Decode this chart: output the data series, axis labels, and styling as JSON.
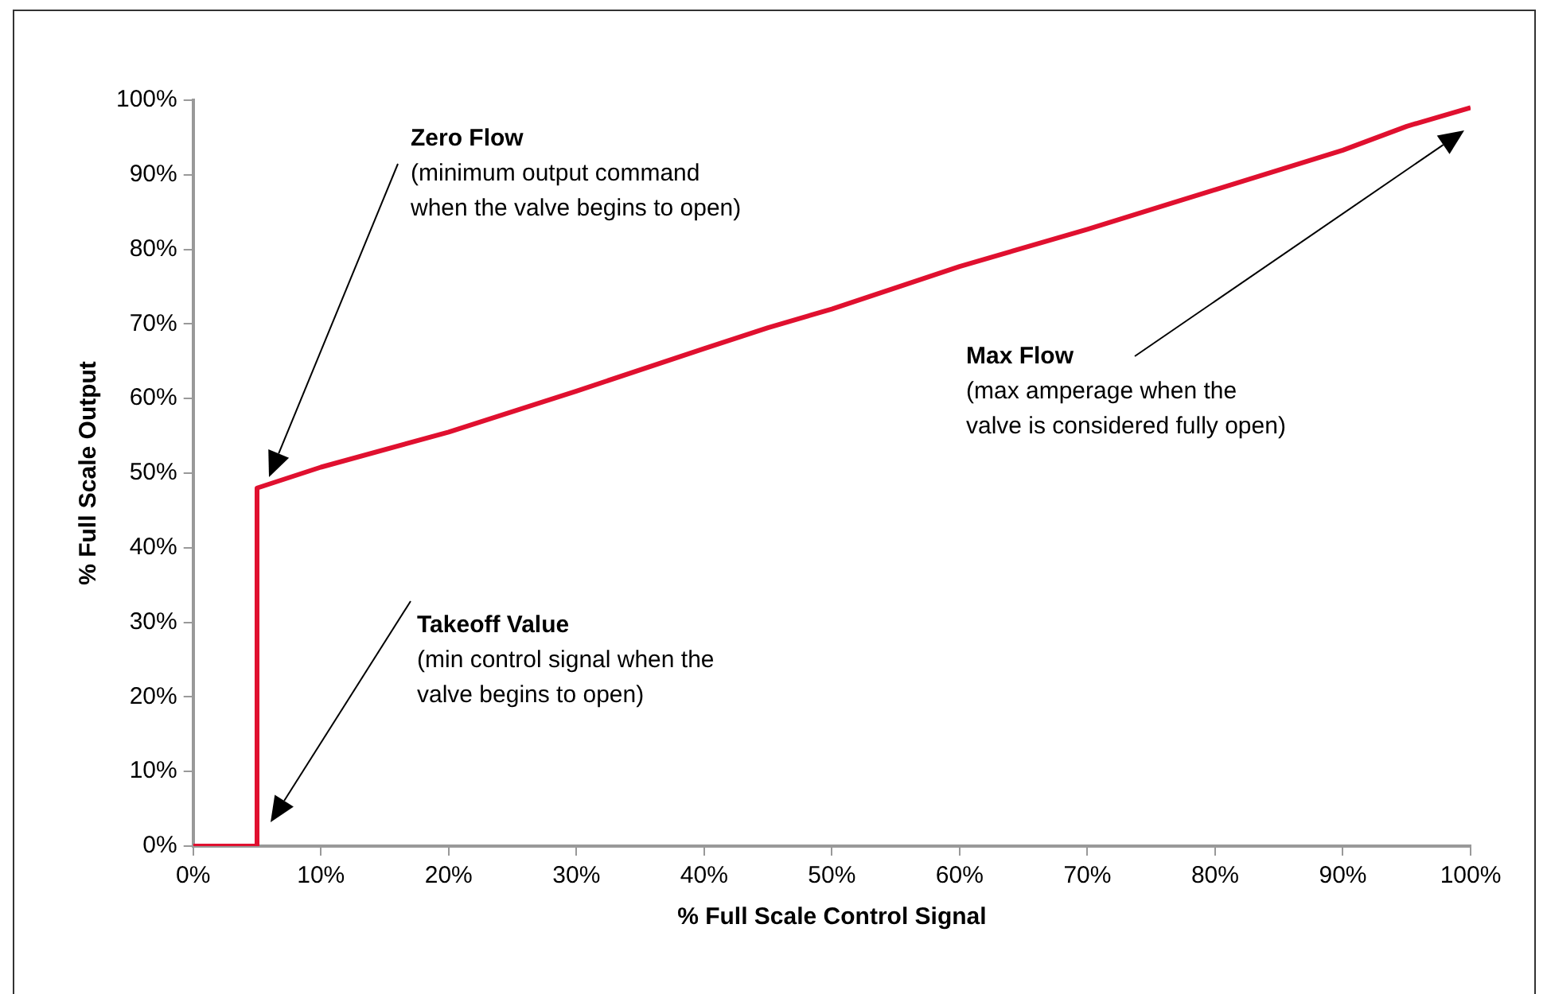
{
  "chart_data": {
    "type": "line",
    "xlabel": "% Full Scale Control Signal",
    "ylabel": "% Full Scale Output",
    "x": [
      0,
      5,
      5,
      10,
      20,
      30,
      40,
      45,
      50,
      60,
      70,
      80,
      90,
      95,
      100
    ],
    "series": [
      {
        "color": "#e0102f",
        "values": [
          0,
          0,
          48,
          50.8,
          55.5,
          61,
          66.7,
          69.5,
          72,
          77.7,
          82.7,
          88,
          93.3,
          96.5,
          99
        ]
      }
    ],
    "xlim": [
      0,
      100
    ],
    "xticks": [
      {
        "value": 0,
        "label": "0%"
      },
      {
        "value": 10,
        "label": "10%"
      },
      {
        "value": 20,
        "label": "20%"
      },
      {
        "value": 30,
        "label": "30%"
      },
      {
        "value": 40,
        "label": "40%"
      },
      {
        "value": 50,
        "label": "50%"
      },
      {
        "value": 60,
        "label": "60%"
      },
      {
        "value": 70,
        "label": "70%"
      },
      {
        "value": 80,
        "label": "80%"
      },
      {
        "value": 90,
        "label": "90%"
      },
      {
        "value": 100,
        "label": "100%"
      }
    ],
    "ylim": [
      0,
      100
    ],
    "yticks": [
      {
        "value": 0,
        "label": "0%"
      },
      {
        "value": 10,
        "label": "10%"
      },
      {
        "value": 20,
        "label": "20%"
      },
      {
        "value": 30,
        "label": "30%"
      },
      {
        "value": 40,
        "label": "40%"
      },
      {
        "value": 50,
        "label": "50%"
      },
      {
        "value": 60,
        "label": "60%"
      },
      {
        "value": 70,
        "label": "70%"
      },
      {
        "value": 80,
        "label": "80%"
      },
      {
        "value": 90,
        "label": "90%"
      },
      {
        "value": 100,
        "label": "100%"
      }
    ],
    "grid": false,
    "legend": false,
    "marker": "none",
    "line_style": "solid",
    "annotations": [
      "Zero Flow\n(minimum output command\nwhen the valve begins to open)",
      "Takeoff Value\n(min control signal when the\nvalve begins to open)",
      "Max Flow\n(max amperage when the\nvalve is considered fully open)"
    ]
  }
}
